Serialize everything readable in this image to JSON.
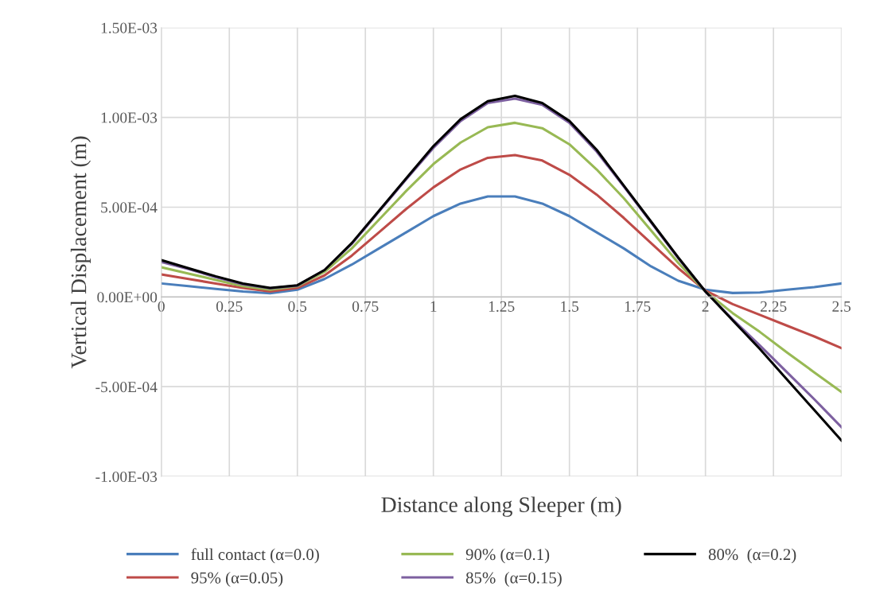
{
  "chart_data": {
    "type": "line",
    "xlabel": "Distance along Sleeper (m)",
    "ylabel": "Vertical Displacement (m)",
    "x": [
      0,
      0.1,
      0.2,
      0.3,
      0.4,
      0.5,
      0.6,
      0.7,
      0.8,
      0.9,
      1.0,
      1.1,
      1.2,
      1.3,
      1.4,
      1.5,
      1.6,
      1.7,
      1.8,
      1.9,
      2.0,
      2.1,
      2.2,
      2.3,
      2.4,
      2.5
    ],
    "series": [
      {
        "name": "full contact (α=0.0)",
        "color": "#4a7ebb",
        "values": [
          7.5e-05,
          6e-05,
          4.5e-05,
          3e-05,
          2e-05,
          4e-05,
          0.0001,
          0.00018,
          0.00027,
          0.00036,
          0.00045,
          0.00052,
          0.00056,
          0.00056,
          0.00052,
          0.00045,
          0.00036,
          0.00027,
          0.00017,
          9e-05,
          4e-05,
          2.2e-05,
          2.5e-05,
          4e-05,
          5.5e-05,
          7.5e-05
        ]
      },
      {
        "name": "95% (α=0.05)",
        "color": "#be4b48",
        "values": [
          0.000125,
          0.0001,
          7.5e-05,
          5e-05,
          3e-05,
          5e-05,
          0.00012,
          0.00023,
          0.00036,
          0.00049,
          0.00061,
          0.00071,
          0.000775,
          0.00079,
          0.00076,
          0.00068,
          0.00057,
          0.00044,
          0.0003,
          0.00016,
          3.5e-05,
          -4e-05,
          -0.0001,
          -0.00016,
          -0.00022,
          -0.000285
        ]
      },
      {
        "name": "90% (α=0.1)",
        "color": "#98b954",
        "values": [
          0.000165,
          0.00013,
          9.5e-05,
          6e-05,
          4e-05,
          6e-05,
          0.00014,
          0.00027,
          0.00043,
          0.00059,
          0.00074,
          0.00086,
          0.000945,
          0.00097,
          0.00094,
          0.00085,
          0.00071,
          0.00055,
          0.00037,
          0.00019,
          3e-05,
          -9e-05,
          -0.000195,
          -0.00031,
          -0.00042,
          -0.00053
        ]
      },
      {
        "name": "85%  (α=0.15)",
        "color": "#7d60a0",
        "values": [
          0.000195,
          0.000155,
          0.00011,
          7e-05,
          4.8e-05,
          6.3e-05,
          0.00015,
          0.000295,
          0.000475,
          0.000655,
          0.00083,
          0.00098,
          0.00108,
          0.001105,
          0.00107,
          0.00097,
          0.00081,
          0.000615,
          0.000415,
          0.000215,
          3e-05,
          -0.000125,
          -0.00027,
          -0.00042,
          -0.00057,
          -0.000725
        ]
      },
      {
        "name": "80%  (α=0.2)",
        "color": "#000000",
        "values": [
          0.000205,
          0.00016,
          0.000115,
          7.5e-05,
          5e-05,
          6.5e-05,
          0.00015,
          0.0003,
          0.00048,
          0.00066,
          0.00084,
          0.00099,
          0.00109,
          0.00112,
          0.00108,
          0.00098,
          0.00082,
          0.00062,
          0.00042,
          0.00022,
          3e-05,
          -0.00013,
          -0.00029,
          -0.00046,
          -0.00063,
          -0.0008
        ]
      }
    ],
    "xlim": [
      0,
      2.5
    ],
    "xticks": [
      0,
      0.25,
      0.5,
      0.75,
      1,
      1.25,
      1.5,
      1.75,
      2,
      2.25,
      2.5
    ],
    "ylim": [
      -0.001,
      0.0015
    ],
    "yticks": [
      {
        "value": -0.001,
        "label": "-1.00E-03"
      },
      {
        "value": -0.0005,
        "label": "-5.00E-04"
      },
      {
        "value": 0,
        "label": "0.00E+00"
      },
      {
        "value": 0.0005,
        "label": "5.00E-04"
      },
      {
        "value": 0.001,
        "label": "1.00E-03"
      },
      {
        "value": 0.0015,
        "label": "1.50E-03"
      }
    ],
    "grid": true,
    "legend": "bottom",
    "marker": "none",
    "line_style": "solid"
  }
}
